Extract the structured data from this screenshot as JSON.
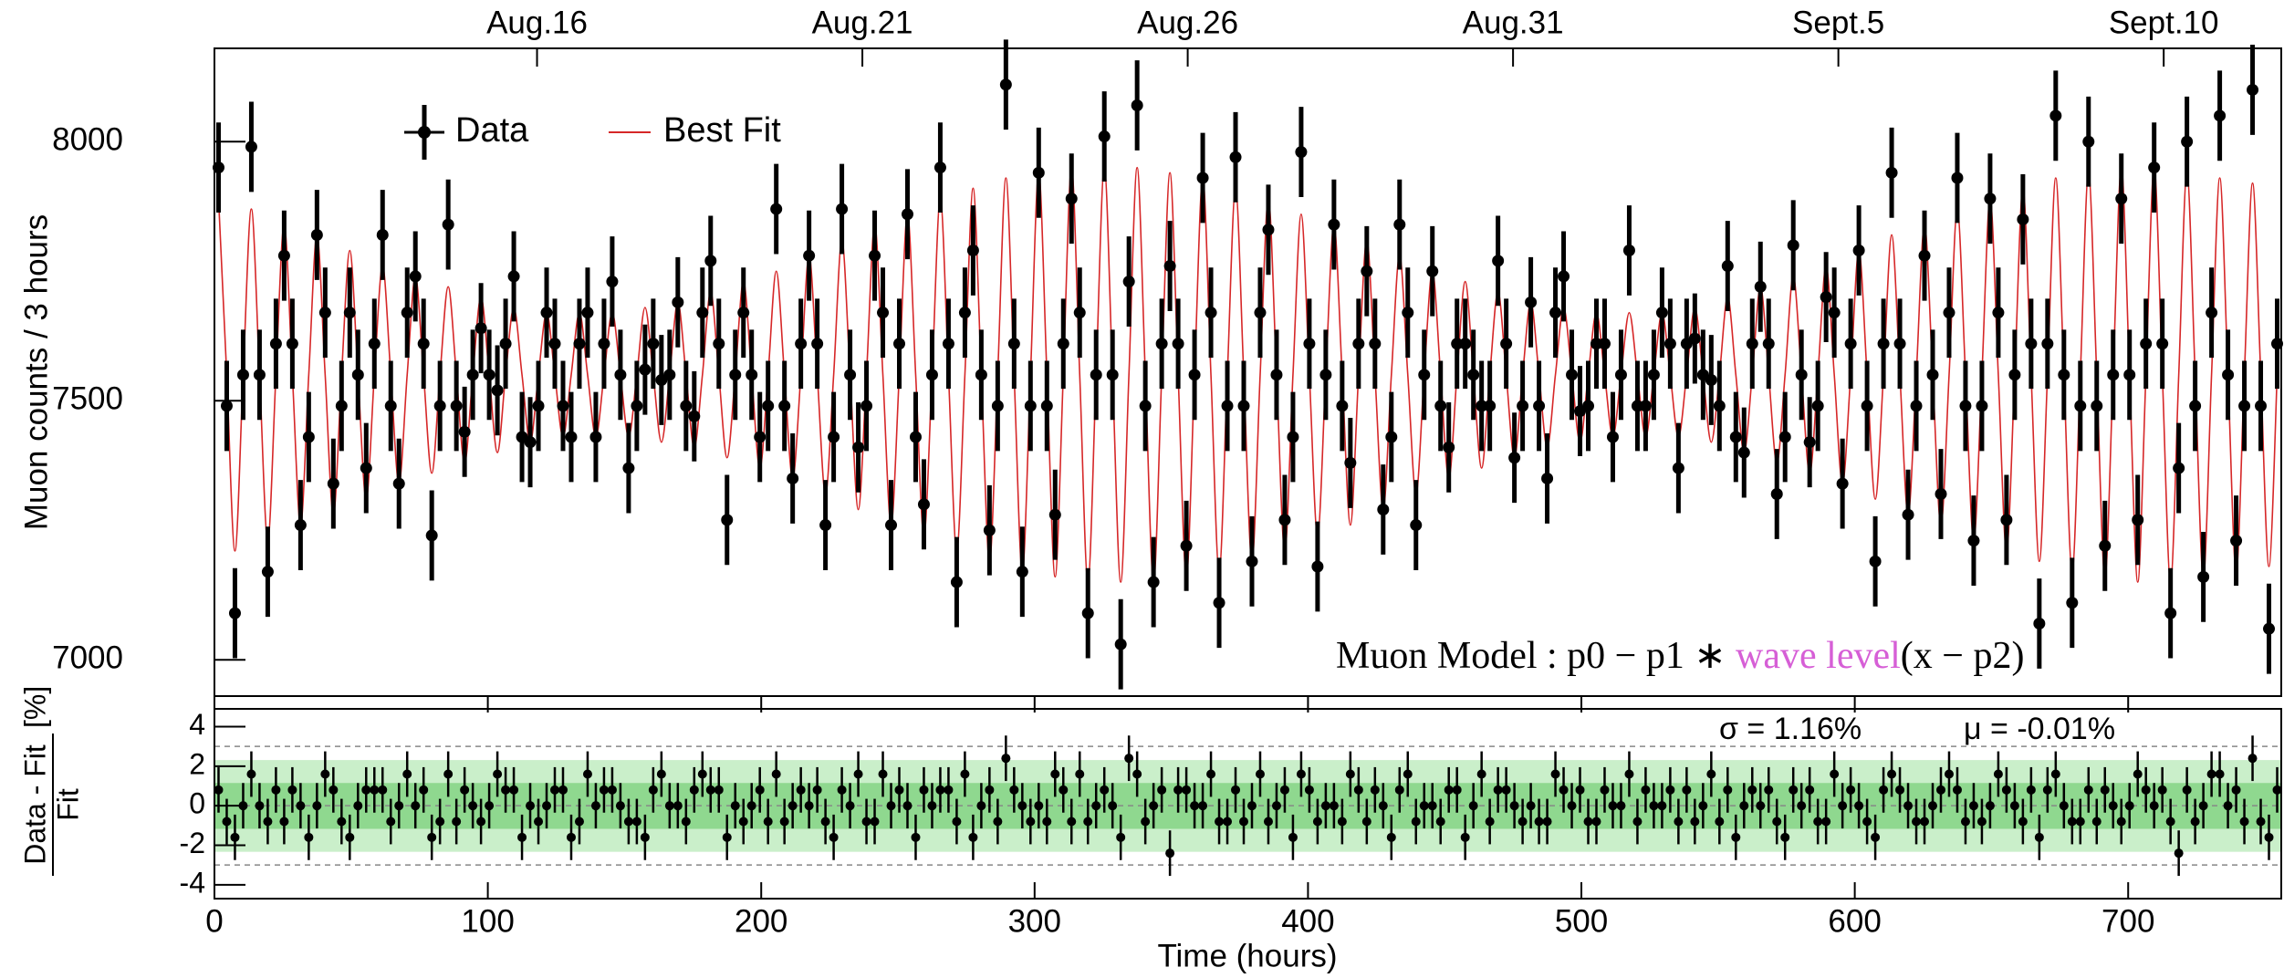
{
  "chart_data": [
    {
      "type": "errorbar_fit",
      "ylabel": "Muon counts / 3 hours",
      "legend": "upper left",
      "annotation_parts": [
        "Muon Model : p0 − p1 ∗ ",
        "wave level",
        "(x − p2)"
      ],
      "annotation_colors": [
        "#000000",
        "#d65fd6",
        "#000000"
      ],
      "xlim": [
        0,
        756
      ],
      "ylim": [
        6930,
        8180
      ],
      "yticks": [
        7000,
        7500,
        8000
      ],
      "top_ticks": [
        {
          "value": 118,
          "label": "Aug.16"
        },
        {
          "value": 237,
          "label": "Aug.21"
        },
        {
          "value": 356,
          "label": "Aug.26"
        },
        {
          "value": 475,
          "label": "Aug.31"
        },
        {
          "value": 594,
          "label": "Sept.5"
        },
        {
          "value": 713,
          "label": "Sept.10"
        }
      ],
      "x": [
        1.5,
        4.5,
        7.5,
        10.5,
        13.5,
        16.5,
        19.5,
        22.5,
        25.5,
        28.5,
        31.5,
        34.5,
        37.5,
        40.5,
        43.5,
        46.5,
        49.5,
        52.5,
        55.5,
        58.5,
        61.5,
        64.5,
        67.5,
        70.5,
        73.5,
        76.5,
        79.5,
        82.5,
        85.5,
        88.5,
        91.5,
        94.5,
        97.5,
        100.5,
        103.5,
        106.5,
        109.5,
        112.5,
        115.5,
        118.5,
        121.5,
        124.5,
        127.5,
        130.5,
        133.5,
        136.5,
        139.5,
        142.5,
        145.5,
        148.5,
        151.5,
        154.5,
        157.5,
        160.5,
        163.5,
        166.5,
        169.5,
        172.5,
        175.5,
        178.5,
        181.5,
        184.5,
        187.5,
        190.5,
        193.5,
        196.5,
        199.5,
        202.5,
        205.5,
        208.5,
        211.5,
        214.5,
        217.5,
        220.5,
        223.5,
        226.5,
        229.5,
        232.5,
        235.5,
        238.5,
        241.5,
        244.5,
        247.5,
        250.5,
        253.5,
        256.5,
        259.5,
        262.5,
        265.5,
        268.5,
        271.5,
        274.5,
        277.5,
        280.5,
        283.5,
        286.5,
        289.5,
        292.5,
        295.5,
        298.5,
        301.5,
        304.5,
        307.5,
        310.5,
        313.5,
        316.5,
        319.5,
        322.5,
        325.5,
        328.5,
        331.5,
        334.5,
        337.5,
        340.5,
        343.5,
        346.5,
        349.5,
        352.5,
        355.5,
        358.5,
        361.5,
        364.5,
        367.5,
        370.5,
        373.5,
        376.5,
        379.5,
        382.5,
        385.5,
        388.5,
        391.5,
        394.5,
        397.5,
        400.5,
        403.5,
        406.5,
        409.5,
        412.5,
        415.5,
        418.5,
        421.5,
        424.5,
        427.5,
        430.5,
        433.5,
        436.5,
        439.5,
        442.5,
        445.5,
        448.5,
        451.5,
        454.5,
        457.5,
        460.5,
        463.5,
        466.5,
        469.5,
        472.5,
        475.5,
        478.5,
        481.5,
        484.5,
        487.5,
        490.5,
        493.5,
        496.5,
        499.5,
        502.5,
        505.5,
        508.5,
        511.5,
        514.5,
        517.5,
        520.5,
        523.5,
        526.5,
        529.5,
        532.5,
        535.5,
        538.5,
        541.5,
        544.5,
        547.5,
        550.5,
        553.5,
        556.5,
        559.5,
        562.5,
        565.5,
        568.5,
        571.5,
        574.5,
        577.5,
        580.5,
        583.5,
        586.5,
        589.5,
        592.5,
        595.5,
        598.5,
        601.5,
        604.5,
        607.5,
        610.5,
        613.5,
        616.5,
        619.5,
        622.5,
        625.5,
        628.5,
        631.5,
        634.5,
        637.5,
        640.5,
        643.5,
        646.5,
        649.5,
        652.5,
        655.5,
        658.5,
        661.5,
        664.5,
        667.5,
        670.5,
        673.5,
        676.5,
        679.5,
        682.5,
        685.5,
        688.5,
        691.5,
        694.5,
        697.5,
        700.5,
        703.5,
        706.5,
        709.5,
        712.5,
        715.5,
        718.5,
        721.5,
        724.5,
        727.5,
        730.5,
        733.5,
        736.5,
        739.5,
        742.5,
        745.5,
        748.5,
        751.5,
        754.5
      ],
      "series": [
        {
          "name": "Data",
          "color": "#000000",
          "error": 87,
          "values": [
            7950,
            7490,
            7090,
            7550,
            7990,
            7550,
            7170,
            7610,
            7780,
            7610,
            7260,
            7430,
            7820,
            7670,
            7340,
            7490,
            7670,
            7550,
            7370,
            7610,
            7820,
            7490,
            7340,
            7670,
            7740,
            7610,
            7240,
            7490,
            7840,
            7490,
            7440,
            7550,
            7640,
            7550,
            7520,
            7610,
            7740,
            7430,
            7420,
            7490,
            7670,
            7610,
            7490,
            7430,
            7610,
            7670,
            7430,
            7610,
            7730,
            7550,
            7370,
            7490,
            7560,
            7610,
            7540,
            7550,
            7690,
            7490,
            7470,
            7670,
            7770,
            7610,
            7270,
            7550,
            7670,
            7550,
            7430,
            7490,
            7870,
            7490,
            7350,
            7610,
            7780,
            7610,
            7260,
            7430,
            7870,
            7550,
            7410,
            7490,
            7780,
            7670,
            7260,
            7610,
            7860,
            7430,
            7300,
            7550,
            7950,
            7610,
            7150,
            7670,
            7790,
            7550,
            7250,
            7490,
            8110,
            7610,
            7170,
            7490,
            7940,
            7490,
            7280,
            7610,
            7890,
            7670,
            7090,
            7550,
            8010,
            7550,
            7030,
            7730,
            8070,
            7490,
            7150,
            7610,
            7760,
            7610,
            7220,
            7550,
            7930,
            7670,
            7110,
            7490,
            7970,
            7490,
            7190,
            7670,
            7830,
            7550,
            7270,
            7430,
            7980,
            7610,
            7180,
            7550,
            7840,
            7490,
            7380,
            7610,
            7750,
            7610,
            7290,
            7430,
            7840,
            7670,
            7260,
            7550,
            7750,
            7490,
            7410,
            7610,
            7610,
            7550,
            7490,
            7490,
            7770,
            7610,
            7390,
            7490,
            7690,
            7490,
            7350,
            7670,
            7740,
            7550,
            7480,
            7490,
            7610,
            7610,
            7430,
            7550,
            7790,
            7490,
            7490,
            7550,
            7670,
            7610,
            7370,
            7610,
            7620,
            7550,
            7540,
            7490,
            7760,
            7430,
            7400,
            7610,
            7720,
            7610,
            7320,
            7430,
            7800,
            7550,
            7420,
            7490,
            7700,
            7670,
            7340,
            7610,
            7790,
            7490,
            7190,
            7610,
            7940,
            7610,
            7280,
            7490,
            7780,
            7550,
            7320,
            7670,
            7930,
            7490,
            7230,
            7490,
            7890,
            7670,
            7270,
            7550,
            7850,
            7610,
            7070,
            7610,
            8050,
            7550,
            7110,
            7490,
            8000,
            7490,
            7220,
            7550,
            7890,
            7550,
            7270,
            7610,
            7950,
            7610,
            7090,
            7370,
            8000,
            7490,
            7160,
            7670,
            8050,
            7550,
            7230,
            7490,
            8100,
            7490,
            7060,
            7610
          ]
        },
        {
          "name": "Best Fit",
          "color": "#d62728",
          "values": [
            7890,
            7550,
            7210,
            7550,
            7870,
            7550,
            7230,
            7550,
            7840,
            7550,
            7260,
            7550,
            7820,
            7550,
            7280,
            7550,
            7790,
            7550,
            7310,
            7550,
            7760,
            7550,
            7340,
            7550,
            7740,
            7550,
            7360,
            7550,
            7720,
            7550,
            7380,
            7550,
            7700,
            7550,
            7400,
            7550,
            7680,
            7550,
            7420,
            7550,
            7670,
            7550,
            7430,
            7550,
            7670,
            7550,
            7430,
            7550,
            7670,
            7550,
            7430,
            7550,
            7680,
            7550,
            7420,
            7550,
            7690,
            7550,
            7410,
            7550,
            7710,
            7550,
            7390,
            7550,
            7730,
            7550,
            7370,
            7550,
            7750,
            7550,
            7350,
            7550,
            7780,
            7550,
            7320,
            7550,
            7810,
            7550,
            7290,
            7550,
            7840,
            7550,
            7260,
            7550,
            7860,
            7550,
            7240,
            7550,
            7890,
            7550,
            7210,
            7550,
            7910,
            7550,
            7190,
            7550,
            7930,
            7550,
            7170,
            7550,
            7940,
            7550,
            7160,
            7550,
            7950,
            7550,
            7150,
            7550,
            7950,
            7550,
            7150,
            7550,
            7950,
            7550,
            7150,
            7550,
            7940,
            7550,
            7160,
            7550,
            7930,
            7550,
            7170,
            7550,
            7910,
            7550,
            7190,
            7550,
            7890,
            7550,
            7210,
            7550,
            7860,
            7550,
            7240,
            7550,
            7840,
            7550,
            7260,
            7550,
            7810,
            7550,
            7290,
            7550,
            7780,
            7550,
            7320,
            7550,
            7750,
            7550,
            7350,
            7550,
            7730,
            7550,
            7370,
            7550,
            7710,
            7550,
            7390,
            7550,
            7690,
            7550,
            7410,
            7550,
            7680,
            7550,
            7420,
            7550,
            7670,
            7550,
            7430,
            7550,
            7670,
            7550,
            7430,
            7550,
            7670,
            7550,
            7430,
            7550,
            7680,
            7550,
            7420,
            7550,
            7700,
            7550,
            7400,
            7550,
            7720,
            7550,
            7380,
            7550,
            7740,
            7550,
            7360,
            7550,
            7760,
            7550,
            7340,
            7550,
            7790,
            7550,
            7310,
            7550,
            7820,
            7550,
            7280,
            7550,
            7840,
            7550,
            7260,
            7550,
            7870,
            7550,
            7230,
            7550,
            7890,
            7550,
            7210,
            7550,
            7910,
            7550,
            7190,
            7550,
            7930,
            7550,
            7170,
            7550,
            7940,
            7550,
            7160,
            7550,
            7950,
            7550,
            7150,
            7550,
            7950,
            7550,
            7150,
            7550,
            7940,
            7550,
            7160,
            7550,
            7930,
            7550,
            7170,
            7550,
            7920,
            7550,
            7180,
            7550
          ]
        }
      ]
    },
    {
      "type": "residual",
      "ylabel_numerator": "Data - Fit",
      "ylabel_denominator": "Fit",
      "ylabel_unit": "[%]",
      "xlabel": "Time (hours)",
      "xticks": [
        0,
        100,
        200,
        300,
        400,
        500,
        600,
        700
      ],
      "ylim": [
        -4.7,
        4.9
      ],
      "yticks": [
        -4,
        -2,
        0,
        2,
        4
      ],
      "stats": [
        {
          "value": 1.16,
          "label": "σ = 1.16%"
        },
        {
          "value": -0.01,
          "label": "μ = -0.01%"
        }
      ],
      "band_colors": [
        "#8fd88f",
        "#caefca"
      ],
      "reference_lines": [
        -3,
        0,
        3
      ],
      "color": "#000000",
      "error": 1.15,
      "values": [
        0.8,
        -0.8,
        -1.6,
        0,
        1.6,
        0,
        -0.8,
        0.8,
        -0.8,
        0.8,
        0,
        -1.6,
        0,
        1.6,
        0.8,
        -0.8,
        -1.6,
        0,
        0.8,
        0.8,
        0.8,
        -0.8,
        0,
        1.6,
        0,
        0.8,
        -1.6,
        -0.8,
        1.6,
        -0.8,
        0.8,
        0,
        -0.8,
        0,
        1.6,
        0.8,
        0.8,
        -1.6,
        0,
        -0.8,
        0,
        0.8,
        0.8,
        -1.6,
        -0.8,
        1.6,
        0,
        0.8,
        0.8,
        0,
        -0.8,
        -0.8,
        -1.6,
        0.8,
        1.6,
        0,
        0,
        -0.8,
        0.8,
        1.6,
        0.8,
        0.8,
        -1.6,
        0,
        -0.8,
        0,
        0.8,
        -0.8,
        1.6,
        -0.8,
        0,
        0.8,
        0,
        0.8,
        -0.8,
        -1.6,
        0.8,
        0,
        1.6,
        -0.8,
        -0.8,
        1.6,
        0,
        0.8,
        0,
        -1.6,
        0.8,
        0,
        0.8,
        0.8,
        -0.8,
        1.6,
        -1.6,
        0,
        0.8,
        -0.8,
        2.4,
        0.8,
        0,
        -0.8,
        0,
        -0.8,
        1.6,
        0.8,
        -0.8,
        1.6,
        -0.8,
        0,
        0.8,
        0,
        -1.6,
        2.4,
        1.6,
        -0.8,
        0,
        0.8,
        -2.4,
        0.8,
        0.8,
        0,
        0,
        1.6,
        -0.8,
        -0.8,
        0.8,
        -0.8,
        0,
        1.6,
        -0.8,
        0,
        0.8,
        -1.6,
        1.6,
        0.8,
        -0.8,
        0,
        0,
        -0.8,
        1.6,
        0.8,
        -0.8,
        0.8,
        0,
        -1.6,
        0.8,
        1.6,
        -0.8,
        0,
        0,
        -0.8,
        0.8,
        0.8,
        -1.6,
        0,
        1.6,
        -0.8,
        0.8,
        0.8,
        0,
        -0.8,
        0,
        -0.8,
        -0.8,
        1.6,
        0.8,
        0,
        0.8,
        -0.8,
        -0.8,
        0.8,
        0,
        0,
        1.6,
        -0.8,
        0.8,
        0,
        0,
        0.8,
        -0.8,
        0.8,
        -0.8,
        0,
        1.6,
        -0.8,
        0.8,
        -1.6,
        0,
        0.8,
        0,
        0.8,
        -0.8,
        -1.6,
        0.8,
        0,
        0.8,
        -0.8,
        -0.8,
        1.6,
        0,
        0.8,
        0,
        -0.8,
        -1.6,
        0.8,
        1.6,
        0.8,
        0,
        -0.8,
        -0.8,
        0,
        0.8,
        1.6,
        0.8,
        -0.8,
        0,
        -0.8,
        0,
        1.6,
        0.8,
        0,
        -0.8,
        0.8,
        -1.6,
        0.8,
        1.6,
        0,
        -0.8,
        -0.8,
        0.8,
        -0.8,
        0.8,
        0,
        -0.8,
        0,
        1.6,
        0.8,
        0,
        0.8,
        -0.8,
        -2.4,
        0.8,
        -0.8,
        0,
        1.6,
        1.6,
        0,
        0.8,
        -0.8,
        2.4,
        -0.8,
        -1.6,
        0.8
      ]
    }
  ]
}
